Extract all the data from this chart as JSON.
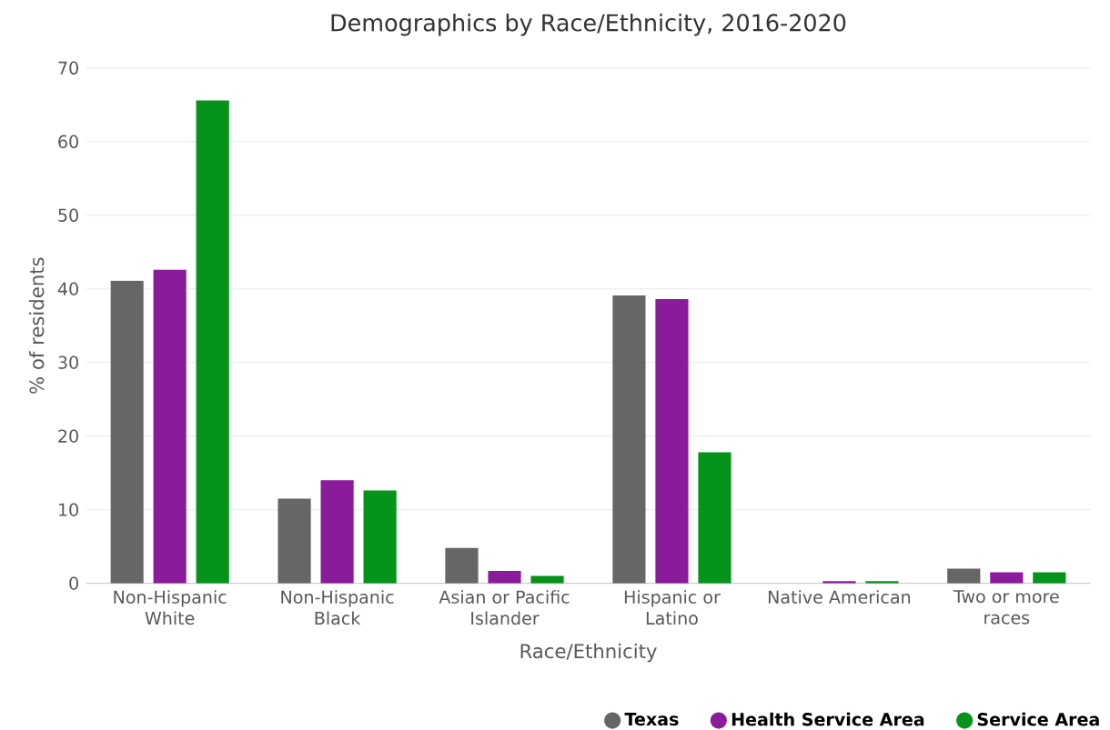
{
  "chart_data": {
    "type": "bar",
    "title": "Demographics by Race/Ethnicity, 2016-2020",
    "xlabel": "Race/Ethnicity",
    "ylabel": "% of residents",
    "categories": [
      "Non-Hispanic White",
      "Non-Hispanic Black",
      "Asian or Pacific Islander",
      "Hispanic or Latino",
      "Native American",
      "Two or more races"
    ],
    "series": [
      {
        "name": "Texas",
        "color": "#666666",
        "values": [
          41.1,
          11.5,
          4.8,
          39.1,
          0,
          2.0
        ]
      },
      {
        "name": "Health Service Area",
        "color": "#8a1c9c",
        "values": [
          42.6,
          14.0,
          1.7,
          38.6,
          0.3,
          1.5
        ]
      },
      {
        "name": "Service Area",
        "color": "#05931a",
        "values": [
          65.6,
          12.6,
          1.0,
          17.8,
          0.3,
          1.5
        ]
      }
    ],
    "ylim": [
      0,
      70
    ],
    "yticks": [
      0,
      10,
      20,
      30,
      40,
      50,
      60,
      70
    ],
    "grid": "y",
    "legend": "bottom"
  }
}
